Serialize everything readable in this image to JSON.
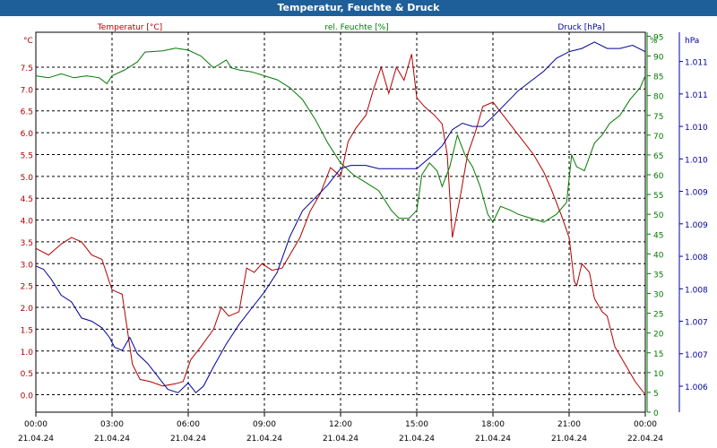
{
  "window": {
    "title": "Temperatur, Feuchte & Druck"
  },
  "chart_data": {
    "type": "line",
    "title": "Temperatur, Feuchte & Druck",
    "colors": {
      "temperature": "#b00000",
      "humidity": "#007a00",
      "pressure": "#00009c",
      "grid": "#000000",
      "titlebar": "#1f5f99"
    },
    "x_ticks": [
      {
        "time": "00:00",
        "date": "21.04.24"
      },
      {
        "time": "03:00",
        "date": "21.04.24"
      },
      {
        "time": "06:00",
        "date": "21.04.24"
      },
      {
        "time": "09:00",
        "date": "21.04.24"
      },
      {
        "time": "12:00",
        "date": "21.04.24"
      },
      {
        "time": "15:00",
        "date": "21.04.24"
      },
      {
        "time": "18:00",
        "date": "21.04.24"
      },
      {
        "time": "21:00",
        "date": "21.04.24"
      },
      {
        "time": "00:00",
        "date": "22.04.24"
      }
    ],
    "axes": {
      "temperature": {
        "label": "Temperatur [°C]",
        "unit": "°C",
        "range": [
          -0.4,
          8.3
        ],
        "ticks": [
          "0.0",
          "0.5",
          "1.0",
          "1.5",
          "2.0",
          "2.5",
          "3.0",
          "3.5",
          "4.0",
          "4.5",
          "5.0",
          "5.5",
          "6.0",
          "6.5",
          "7.0",
          "7.5"
        ]
      },
      "humidity": {
        "label": "rel. Feuchte [%]",
        "unit": "%",
        "range": [
          0,
          96
        ],
        "ticks": [
          "0",
          "5",
          "10",
          "15",
          "20",
          "25",
          "30",
          "35",
          "40",
          "45",
          "50",
          "55",
          "60",
          "65",
          "70",
          "75",
          "80",
          "85",
          "90",
          "95"
        ]
      },
      "pressure": {
        "label": "Druck [hPa]",
        "unit": "hPa",
        "range": [
          1005.6,
          1011.45
        ],
        "ticks": [
          "1.006",
          "1.007",
          "1.007",
          "1.008",
          "1.008",
          "1.009",
          "1.009",
          "1.010",
          "1.010",
          "1.011",
          "1.011"
        ]
      }
    },
    "series": [
      {
        "name": "Temperatur [°C]",
        "axis": "temperature",
        "points": [
          [
            0,
            3.35
          ],
          [
            0.5,
            3.2
          ],
          [
            1,
            3.45
          ],
          [
            1.4,
            3.6
          ],
          [
            1.8,
            3.5
          ],
          [
            2.2,
            3.2
          ],
          [
            2.6,
            3.1
          ],
          [
            3.0,
            2.4
          ],
          [
            3.4,
            2.3
          ],
          [
            3.6,
            1.5
          ],
          [
            3.8,
            0.7
          ],
          [
            4.1,
            0.35
          ],
          [
            4.5,
            0.3
          ],
          [
            5,
            0.2
          ],
          [
            5.5,
            0.25
          ],
          [
            5.8,
            0.3
          ],
          [
            6.1,
            0.8
          ],
          [
            6.5,
            1.1
          ],
          [
            7,
            1.5
          ],
          [
            7.3,
            2.0
          ],
          [
            7.6,
            1.8
          ],
          [
            8,
            1.9
          ],
          [
            8.3,
            2.9
          ],
          [
            8.6,
            2.8
          ],
          [
            8.9,
            3.0
          ],
          [
            9.3,
            2.85
          ],
          [
            9.7,
            2.9
          ],
          [
            10,
            3.2
          ],
          [
            10.4,
            3.6
          ],
          [
            10.8,
            4.2
          ],
          [
            11.2,
            4.6
          ],
          [
            11.6,
            5.2
          ],
          [
            12,
            5.0
          ],
          [
            12.3,
            5.8
          ],
          [
            12.6,
            6.1
          ],
          [
            13,
            6.4
          ],
          [
            13.3,
            7.0
          ],
          [
            13.6,
            7.5
          ],
          [
            13.9,
            6.9
          ],
          [
            14.2,
            7.5
          ],
          [
            14.5,
            7.2
          ],
          [
            14.8,
            7.8
          ],
          [
            15,
            6.8
          ],
          [
            15.3,
            6.6
          ],
          [
            15.7,
            6.4
          ],
          [
            16,
            6.2
          ],
          [
            16.2,
            5.5
          ],
          [
            16.4,
            3.6
          ],
          [
            16.7,
            4.5
          ],
          [
            17,
            5.5
          ],
          [
            17.3,
            6.0
          ],
          [
            17.6,
            6.6
          ],
          [
            18,
            6.7
          ],
          [
            18.4,
            6.4
          ],
          [
            18.8,
            6.1
          ],
          [
            19.2,
            5.8
          ],
          [
            19.6,
            5.5
          ],
          [
            20,
            5.1
          ],
          [
            20.3,
            4.7
          ],
          [
            20.7,
            4.1
          ],
          [
            21,
            3.6
          ],
          [
            21.2,
            2.6
          ],
          [
            21.3,
            2.5
          ],
          [
            21.5,
            3.0
          ],
          [
            21.8,
            2.8
          ],
          [
            22,
            2.2
          ],
          [
            22.3,
            1.9
          ],
          [
            22.5,
            1.8
          ],
          [
            22.8,
            1.1
          ],
          [
            23,
            0.9
          ],
          [
            23.3,
            0.6
          ],
          [
            23.6,
            0.3
          ],
          [
            24,
            0.0
          ]
        ]
      },
      {
        "name": "rel. Feuchte [%]",
        "axis": "humidity",
        "points": [
          [
            0,
            85
          ],
          [
            0.5,
            84.5
          ],
          [
            1,
            85.5
          ],
          [
            1.5,
            84.5
          ],
          [
            2,
            85
          ],
          [
            2.5,
            84.5
          ],
          [
            2.8,
            83
          ],
          [
            3,
            85
          ],
          [
            3.5,
            86.5
          ],
          [
            4,
            88.5
          ],
          [
            4.3,
            91
          ],
          [
            5,
            91.3
          ],
          [
            5.5,
            92
          ],
          [
            6,
            91.5
          ],
          [
            6.5,
            90
          ],
          [
            7,
            87
          ],
          [
            7.5,
            89
          ],
          [
            7.7,
            87
          ],
          [
            8,
            86.5
          ],
          [
            8.5,
            86
          ],
          [
            9,
            85
          ],
          [
            9.5,
            84
          ],
          [
            10,
            82
          ],
          [
            10.5,
            79
          ],
          [
            11,
            74
          ],
          [
            11.5,
            68
          ],
          [
            12,
            63
          ],
          [
            12.5,
            60
          ],
          [
            13,
            58
          ],
          [
            13.5,
            56
          ],
          [
            14,
            51
          ],
          [
            14.3,
            49
          ],
          [
            14.7,
            49
          ],
          [
            15,
            51
          ],
          [
            15.2,
            60
          ],
          [
            15.5,
            63
          ],
          [
            15.8,
            61
          ],
          [
            16,
            57
          ],
          [
            16.3,
            62
          ],
          [
            16.6,
            70
          ],
          [
            16.9,
            65
          ],
          [
            17.2,
            62
          ],
          [
            17.5,
            57
          ],
          [
            17.8,
            50
          ],
          [
            18,
            48
          ],
          [
            18.3,
            52
          ],
          [
            18.7,
            51
          ],
          [
            19,
            50
          ],
          [
            19.5,
            49
          ],
          [
            20,
            48
          ],
          [
            20.5,
            50
          ],
          [
            20.9,
            53
          ],
          [
            21.1,
            65
          ],
          [
            21.3,
            62
          ],
          [
            21.6,
            61
          ],
          [
            22,
            68
          ],
          [
            22.3,
            70
          ],
          [
            22.6,
            73
          ],
          [
            23,
            75
          ],
          [
            23.4,
            79
          ],
          [
            23.8,
            82
          ],
          [
            24,
            85
          ]
        ]
      },
      {
        "name": "Druck [hPa]",
        "axis": "pressure",
        "points": [
          [
            0,
            1007.85
          ],
          [
            0.3,
            1007.8
          ],
          [
            0.6,
            1007.65
          ],
          [
            1,
            1007.4
          ],
          [
            1.4,
            1007.3
          ],
          [
            1.8,
            1007.05
          ],
          [
            2.2,
            1007.0
          ],
          [
            2.6,
            1006.9
          ],
          [
            2.9,
            1006.75
          ],
          [
            3.1,
            1006.6
          ],
          [
            3.4,
            1006.55
          ],
          [
            3.7,
            1006.75
          ],
          [
            4,
            1006.5
          ],
          [
            4.4,
            1006.35
          ],
          [
            4.8,
            1006.15
          ],
          [
            5.2,
            1005.95
          ],
          [
            5.6,
            1005.9
          ],
          [
            6,
            1006.05
          ],
          [
            6.3,
            1005.9
          ],
          [
            6.6,
            1006.0
          ],
          [
            7,
            1006.3
          ],
          [
            7.5,
            1006.65
          ],
          [
            8,
            1006.95
          ],
          [
            8.5,
            1007.2
          ],
          [
            9,
            1007.45
          ],
          [
            9.5,
            1007.75
          ],
          [
            10,
            1008.3
          ],
          [
            10.5,
            1008.7
          ],
          [
            11,
            1008.9
          ],
          [
            11.5,
            1009.1
          ],
          [
            12,
            1009.35
          ],
          [
            12.4,
            1009.4
          ],
          [
            13,
            1009.4
          ],
          [
            13.5,
            1009.35
          ],
          [
            14,
            1009.35
          ],
          [
            14.5,
            1009.35
          ],
          [
            15,
            1009.35
          ],
          [
            15.3,
            1009.45
          ],
          [
            15.6,
            1009.55
          ],
          [
            16,
            1009.7
          ],
          [
            16.4,
            1009.95
          ],
          [
            16.8,
            1010.05
          ],
          [
            17.2,
            1010.0
          ],
          [
            17.6,
            1010.0
          ],
          [
            18,
            1010.15
          ],
          [
            18.5,
            1010.35
          ],
          [
            19,
            1010.55
          ],
          [
            19.5,
            1010.7
          ],
          [
            20,
            1010.85
          ],
          [
            20.5,
            1011.05
          ],
          [
            21,
            1011.15
          ],
          [
            21.5,
            1011.2
          ],
          [
            22,
            1011.3
          ],
          [
            22.5,
            1011.2
          ],
          [
            23,
            1011.2
          ],
          [
            23.5,
            1011.25
          ],
          [
            24,
            1011.15
          ]
        ]
      }
    ]
  }
}
